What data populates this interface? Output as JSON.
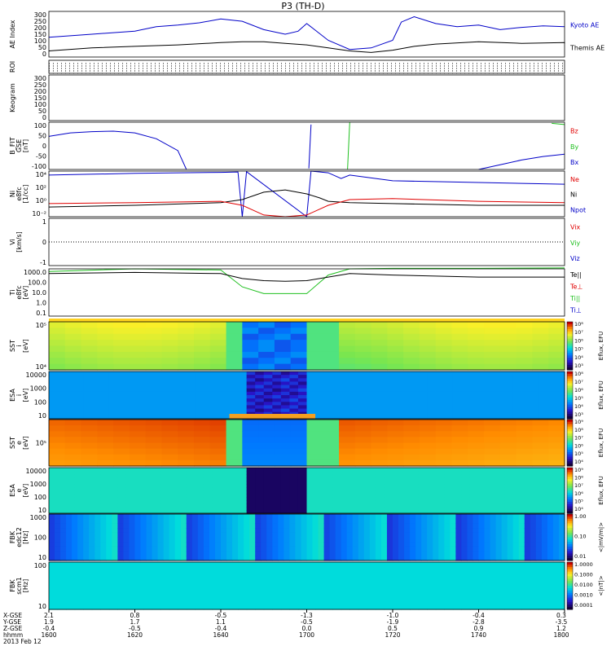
{
  "page_title": "P3 (TH-D)",
  "panels": [
    {
      "id": "ae",
      "ylabel": [
        "AE Index"
      ],
      "yticks": [
        "300",
        "250",
        "200",
        "150",
        "100",
        "50",
        "0"
      ],
      "legend": [
        {
          "text": "Kyoto AE",
          "color": "#0000c8"
        },
        {
          "text": "Themis AE",
          "color": "#000000"
        }
      ]
    },
    {
      "id": "roi",
      "ylabel": [
        "ROI"
      ],
      "yticks": [],
      "legend": []
    },
    {
      "id": "keogram",
      "ylabel": [
        "Keogram"
      ],
      "yticks": [
        "300",
        "250",
        "200",
        "150",
        "100",
        "50",
        "0"
      ],
      "legend": []
    },
    {
      "id": "bfit",
      "ylabel": [
        "B_FIT",
        "GSE",
        "[nT]"
      ],
      "yticks": [
        "100",
        "50",
        "0",
        "-50",
        "-100"
      ],
      "legend": [
        {
          "text": "Bz",
          "color": "#e00000"
        },
        {
          "text": "By",
          "color": "#20c020"
        },
        {
          "text": "Bx",
          "color": "#0000c8"
        }
      ]
    },
    {
      "id": "ni",
      "ylabel": [
        "Ni",
        "e8fc",
        "[1/cc]"
      ],
      "yticks": [
        "10⁴",
        "10²",
        "10⁰",
        "10⁻²"
      ],
      "legend": [
        {
          "text": "Ne",
          "color": "#e00000"
        },
        {
          "text": "Ni",
          "color": "#000000"
        },
        {
          "text": "Npot",
          "color": "#0000c8"
        }
      ]
    },
    {
      "id": "vi",
      "ylabel": [
        "Vi",
        "[km/s]"
      ],
      "yticks": [
        "1",
        "0",
        "-1"
      ],
      "legend": [
        {
          "text": "Vix",
          "color": "#e00000"
        },
        {
          "text": "Viy",
          "color": "#20c020"
        },
        {
          "text": "Viz",
          "color": "#0000c8"
        }
      ]
    },
    {
      "id": "ti",
      "ylabel": [
        "Ti",
        "e8fc",
        "[eV]"
      ],
      "yticks": [
        "1000.0",
        "100.0",
        "10.0",
        "1.0",
        "0.1"
      ],
      "legend": [
        {
          "text": "Te||",
          "color": "#000000"
        },
        {
          "text": "Te⊥",
          "color": "#e00000"
        },
        {
          "text": "Ti||",
          "color": "#20c020"
        },
        {
          "text": "Ti⊥",
          "color": "#0000c8"
        }
      ]
    },
    {
      "id": "sst_i",
      "ylabel": [
        "SST",
        "i",
        "[eV]"
      ],
      "yticks": [
        "10⁵",
        "10⁴"
      ],
      "legend": []
    },
    {
      "id": "esa_i",
      "ylabel": [
        "ESA",
        "i",
        "[eV]"
      ],
      "yticks": [
        "10000",
        "1000",
        "100",
        "10"
      ],
      "legend": []
    },
    {
      "id": "sst_e",
      "ylabel": [
        "SST",
        "e",
        "[eV]"
      ],
      "yticks": [
        "10⁵"
      ],
      "legend": []
    },
    {
      "id": "esa_e",
      "ylabel": [
        "ESA",
        "e",
        "[eV]"
      ],
      "yticks": [
        "10000",
        "1000",
        "100",
        "10"
      ],
      "legend": []
    },
    {
      "id": "fbk_e",
      "ylabel": [
        "FBK",
        "edc12",
        "[Hz]"
      ],
      "yticks": [
        "1000",
        "100",
        "10"
      ],
      "legend": []
    },
    {
      "id": "fbk_b",
      "ylabel": [
        "FBK",
        "scm1",
        "[Hz]"
      ],
      "yticks": [
        "100",
        "10"
      ],
      "legend": []
    }
  ],
  "colorbars": [
    {
      "id": "cb_sst_i",
      "label": "Eflux, EFU",
      "ticks": [
        "10⁸",
        "10⁷",
        "10⁶",
        "10⁵",
        "10⁴",
        "10³"
      ]
    },
    {
      "id": "cb_esa_i",
      "label": "Eflux, EFU",
      "ticks": [
        "10⁸",
        "10⁷",
        "10⁶",
        "10⁵",
        "10⁴",
        "10³"
      ]
    },
    {
      "id": "cb_sst_e",
      "label": "Eflux, EFU",
      "ticks": [
        "10⁹",
        "10⁸",
        "10⁷",
        "10⁶",
        "10⁵",
        "10⁴"
      ]
    },
    {
      "id": "cb_esa_e",
      "label": "Eflux, EFU",
      "ticks": [
        "10⁹",
        "10⁸",
        "10⁷",
        "10⁶",
        "10⁵",
        "10⁴"
      ]
    },
    {
      "id": "cb_fbk_e",
      "label": "<|mV/m|>",
      "ticks": [
        "1.00",
        "0.10",
        "0.01"
      ]
    },
    {
      "id": "cb_fbk_b",
      "label": "<|nT|>",
      "ticks": [
        "1.0000",
        "0.1000",
        "0.0100",
        "0.0010",
        "0.0001"
      ]
    }
  ],
  "footer": {
    "row_labels": [
      "X-GSE",
      "Y-GSE",
      "Z-GSE",
      "hhmm",
      "2013 Feb 12"
    ],
    "columns": [
      {
        "x": "2.1",
        "y": "1.9",
        "z": "-0.4",
        "t": "1600"
      },
      {
        "x": "0.8",
        "y": "1.7",
        "z": "-0.5",
        "t": "1620"
      },
      {
        "x": "-0.5",
        "y": "1.1",
        "z": "-0.4",
        "t": "1640"
      },
      {
        "x": "-1.3",
        "y": "-0.5",
        "z": "0.0",
        "t": "1700"
      },
      {
        "x": "-1.0",
        "y": "-1.9",
        "z": "0.5",
        "t": "1720"
      },
      {
        "x": "-0.4",
        "y": "-2.8",
        "z": "0.9",
        "t": "1740"
      },
      {
        "x": "0.3",
        "y": "-3.5",
        "z": "1.2",
        "t": "1800"
      }
    ]
  },
  "chart_data": {
    "type": "line",
    "title": "P3 (TH-D)",
    "time_range": [
      "1600",
      "1800"
    ],
    "date": "2013 Feb 12",
    "ae_index": {
      "ylim": [
        0,
        300
      ],
      "series": [
        {
          "name": "Kyoto AE",
          "x": [
            1600,
            1605,
            1610,
            1615,
            1620,
            1625,
            1630,
            1635,
            1640,
            1645,
            1650,
            1655,
            1658,
            1700,
            1705,
            1710,
            1715,
            1720,
            1722,
            1725,
            1730,
            1735,
            1740,
            1745,
            1750,
            1755,
            1800
          ],
          "values": [
            130,
            140,
            150,
            160,
            170,
            200,
            210,
            225,
            250,
            235,
            180,
            150,
            170,
            220,
            110,
            50,
            60,
            110,
            230,
            265,
            220,
            200,
            210,
            180,
            195,
            205,
            200
          ],
          "color": "#0000c8"
        },
        {
          "name": "Themis AE",
          "x": [
            1600,
            1610,
            1620,
            1630,
            1640,
            1645,
            1650,
            1655,
            1700,
            1705,
            1710,
            1715,
            1720,
            1725,
            1730,
            1740,
            1750,
            1760,
            1800
          ],
          "values": [
            40,
            60,
            70,
            80,
            95,
            100,
            100,
            90,
            80,
            60,
            40,
            30,
            45,
            70,
            85,
            100,
            90,
            95,
            90
          ],
          "color": "#000000"
        }
      ]
    },
    "b_fit_gse": {
      "ylim": [
        -100,
        100
      ],
      "series": [
        {
          "name": "Bx",
          "x": [
            1600,
            1605,
            1610,
            1615,
            1620,
            1625,
            1630,
            1632
          ],
          "values": [
            40,
            55,
            60,
            62,
            55,
            30,
            -20,
            -100
          ],
          "color": "#0000c8"
        },
        {
          "name": "Bx",
          "x": [
            1700.5,
            1701
          ],
          "values": [
            -95,
            90
          ],
          "color": "#0000c8"
        },
        {
          "name": "Bx",
          "x": [
            1740,
            1745,
            1750,
            1755,
            1760
          ],
          "values": [
            -100,
            -80,
            -60,
            -45,
            -35
          ],
          "color": "#0000c8"
        },
        {
          "name": "By",
          "x": [
            1709.5,
            1710
          ],
          "values": [
            -100,
            100
          ],
          "color": "#20c020"
        },
        {
          "name": "By",
          "x": [
            1757,
            1760
          ],
          "values": [
            95,
            90
          ],
          "color": "#20c020"
        }
      ]
    },
    "density": {
      "ylim_log10": [
        -3,
        5
      ],
      "series": [
        {
          "name": "Npot",
          "x": [
            1600,
            1620,
            1640,
            1644,
            1645,
            1646,
            1700,
            1701,
            1705,
            1708,
            1710,
            1720,
            1740,
            1760
          ],
          "values": [
            20000,
            40000,
            60000,
            70000,
            0.001,
            80000,
            0.001,
            100000,
            50000,
            5000,
            20000,
            2000,
            1000,
            500
          ],
          "color": "#0000c8"
        },
        {
          "name": "Ni",
          "x": [
            1600,
            1620,
            1640,
            1645,
            1650,
            1655,
            1700,
            1703,
            1705,
            1710,
            1720,
            1740,
            1760
          ],
          "values": [
            0.05,
            0.1,
            0.3,
            1,
            20,
            50,
            10,
            2,
            0.5,
            0.3,
            0.2,
            0.1,
            0.1
          ],
          "color": "#000000"
        },
        {
          "name": "Ne",
          "x": [
            1600,
            1620,
            1640,
            1645,
            1650,
            1655,
            1700,
            1705,
            1710,
            1720,
            1740,
            1760
          ],
          "values": [
            0.2,
            0.3,
            0.5,
            0.1,
            0.002,
            0.001,
            0.002,
            0.1,
            1,
            1.5,
            0.5,
            0.3
          ],
          "color": "#e00000"
        }
      ]
    },
    "velocity": {
      "ylim": [
        -1,
        1
      ],
      "series": [
        {
          "name": "Viz",
          "values": [
            0,
            0
          ],
          "color": "#000000"
        }
      ]
    },
    "temperature": {
      "ylim_log10": [
        -1,
        3
      ],
      "series": [
        {
          "name": "Ti||",
          "x": [
            1600,
            1620,
            1640,
            1645,
            1650,
            1655,
            1700,
            1705,
            1710,
            1720,
            1740,
            1760
          ],
          "values": [
            600,
            1000,
            800,
            30,
            8,
            8,
            8,
            300,
            1000,
            1100,
            1100,
            1200
          ],
          "color": "#20c020"
        },
        {
          "name": "Te||",
          "x": [
            1600,
            1620,
            1640,
            1645,
            1650,
            1655,
            1700,
            1705,
            1710,
            1720,
            1740,
            1760
          ],
          "values": [
            400,
            500,
            400,
            150,
            100,
            90,
            100,
            200,
            400,
            300,
            200,
            200
          ],
          "color": "#000000"
        }
      ]
    },
    "spectrograms": [
      "SST i",
      "ESA i",
      "SST e",
      "ESA e",
      "FBK edc12",
      "FBK scm1"
    ]
  }
}
